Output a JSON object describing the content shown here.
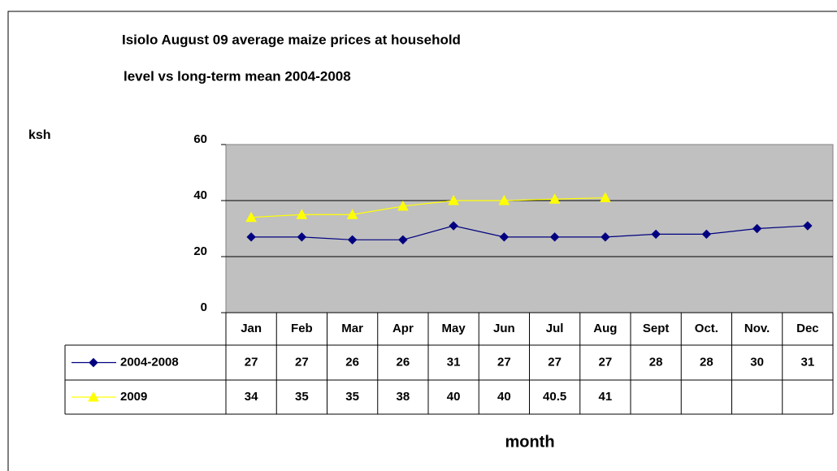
{
  "chart_data": {
    "type": "line",
    "title": [
      "Isiolo August 09 average maize prices at household",
      "level vs long-term mean 2004-2008"
    ],
    "y_label": "ksh",
    "x_label": "month",
    "categories": [
      "Jan",
      "Feb",
      "Mar",
      "Apr",
      "May",
      "Jun",
      "Jul",
      "Aug",
      "Sept",
      "Oct.",
      "Nov.",
      "Dec"
    ],
    "series": [
      {
        "name": "2004-2008",
        "color": "#000080",
        "marker": "diamond",
        "values": [
          27,
          27,
          26,
          26,
          31,
          27,
          27,
          27,
          28,
          28,
          30,
          31
        ]
      },
      {
        "name": "2009",
        "color": "#ffff00",
        "marker": "triangle",
        "values": [
          34,
          35,
          35,
          38,
          40,
          40,
          40.5,
          41,
          null,
          null,
          null,
          null
        ]
      }
    ],
    "ylim": [
      0,
      60
    ],
    "yticks": [
      0,
      20,
      40,
      60
    ],
    "grid": true,
    "plot_background": "#c0c0c0",
    "data_table": true
  }
}
